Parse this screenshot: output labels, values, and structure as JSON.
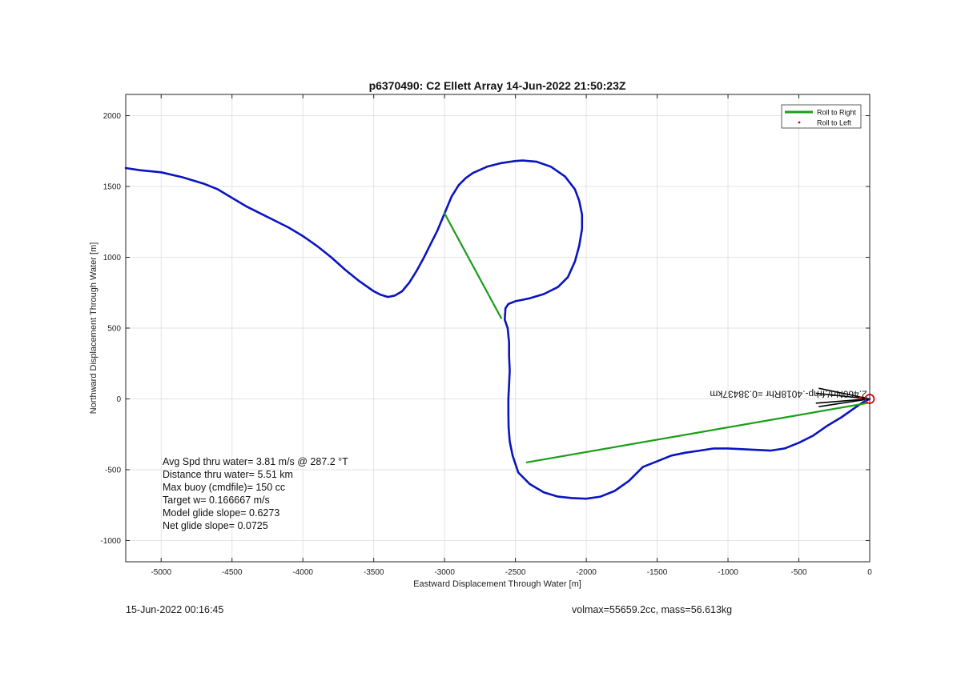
{
  "chart_data": {
    "type": "line",
    "title": "p6370490: C2 Ellett Array 14-Jun-2022 21:50:23Z",
    "xlabel": "Eastward Displacement Through Water [m]",
    "ylabel": "Northward Displacement Through Water [m]",
    "xlim": [
      -5250,
      0
    ],
    "ylim": [
      -1150,
      2150
    ],
    "xticks": [
      -5000,
      -4500,
      -4000,
      -3500,
      -3000,
      -2500,
      -2000,
      -1500,
      -1000,
      -500,
      0
    ],
    "yticks": [
      -1000,
      -500,
      0,
      500,
      1000,
      1500,
      2000
    ],
    "grid": true,
    "legend": {
      "position": "top-right",
      "entries": [
        {
          "label": "Roll to Right",
          "color": "#1a9e1a",
          "marker": "line"
        },
        {
          "label": "Roll to Left",
          "color": "#e00000",
          "marker": "dot"
        }
      ]
    },
    "series": [
      {
        "color": "#0a14c0",
        "x": [
          -5250,
          -5150,
          -5000,
          -4850,
          -4700,
          -4600,
          -4500,
          -4400,
          -4300,
          -4200,
          -4100,
          -4000,
          -3900,
          -3800,
          -3700,
          -3600,
          -3500,
          -3450,
          -3400,
          -3350,
          -3300,
          -3250,
          -3200,
          -3150,
          -3100,
          -3050,
          -3000,
          -2950,
          -2900,
          -2850,
          -2800,
          -2700,
          -2600,
          -2500,
          -2450,
          -2350,
          -2250,
          -2150,
          -2080,
          -2050,
          -2030,
          -2030,
          -2050,
          -2080,
          -2130,
          -2200,
          -2300,
          -2400,
          -2450,
          -2500,
          -2550,
          -2570,
          -2575,
          -2555,
          -2545,
          -2545,
          -2540,
          -2545,
          -2550,
          -2550,
          -2548,
          -2540,
          -2520,
          -2480,
          -2400,
          -2300,
          -2200,
          -2100,
          -2000,
          -1900,
          -1800,
          -1700,
          -1600,
          -1500,
          -1400,
          -1300,
          -1200,
          -1100,
          -1000,
          -900,
          -800,
          -700,
          -600,
          -500,
          -400,
          -300,
          -200,
          -100,
          -50,
          0
        ],
        "y": [
          1630,
          1615,
          1600,
          1565,
          1520,
          1480,
          1420,
          1360,
          1310,
          1260,
          1210,
          1150,
          1080,
          1000,
          910,
          830,
          760,
          735,
          720,
          730,
          760,
          820,
          900,
          990,
          1090,
          1190,
          1310,
          1430,
          1510,
          1560,
          1595,
          1640,
          1665,
          1680,
          1683,
          1675,
          1640,
          1570,
          1480,
          1400,
          1300,
          1200,
          1080,
          970,
          860,
          790,
          740,
          710,
          700,
          690,
          670,
          640,
          560,
          500,
          400,
          300,
          200,
          100,
          0,
          -100,
          -200,
          -300,
          -400,
          -520,
          -600,
          -660,
          -690,
          -700,
          -705,
          -690,
          -650,
          -580,
          -480,
          -440,
          -400,
          -380,
          -365,
          -350,
          -350,
          -355,
          -360,
          -365,
          -350,
          -310,
          -260,
          -190,
          -130,
          -60,
          -25,
          0
        ]
      },
      {
        "color": "#1a9e1a",
        "x": [
          -3000,
          -2600
        ],
        "y": [
          1310,
          570
        ]
      },
      {
        "color": "#1a9e1a",
        "x": [
          -2420,
          -20
        ],
        "y": [
          -448,
          -30
        ]
      }
    ],
    "annotations": [
      {
        "text": "2.460Nrt/.frhp-.4018Rhr =0.38437km",
        "x": -1250,
        "y": 0,
        "flipped": true,
        "color": "#111111"
      }
    ],
    "marker": {
      "x": 0,
      "y": 0,
      "color": "#e00000",
      "shape": "circle"
    },
    "arrow_color": "#000000"
  },
  "stats": [
    "Avg Spd thru water=  3.81 m/s @ 287.2 °T",
    "Distance thru water=  5.51 km",
    "Max buoy (cmdfile)= 150 cc",
    "Target w= 0.166667 m/s",
    "Model glide slope= 0.6273",
    "Net glide slope= 0.0725"
  ],
  "footer": {
    "timestamp": "15-Jun-2022 00:16:45",
    "volmax_mass": "volmax=55659.2cc, mass=56.613kg"
  }
}
